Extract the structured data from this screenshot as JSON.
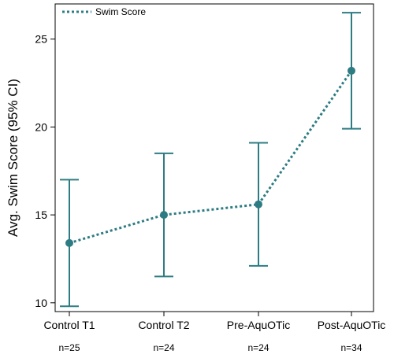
{
  "chart_data": {
    "type": "line",
    "ylabel": "Avg. Swim Score (95% CI)",
    "xlabel": "",
    "categories": [
      "Control T1",
      "Control T2",
      "Pre-AquOTic",
      "Post-AquOTic"
    ],
    "sample_sizes": [
      "n=25",
      "n=24",
      "n=24",
      "n=34"
    ],
    "ylim": [
      9.5,
      27
    ],
    "yticks": [
      10,
      15,
      20,
      25
    ],
    "series": [
      {
        "name": "Swim Score",
        "values": [
          13.4,
          15.0,
          15.6,
          23.2
        ],
        "ci_lower": [
          9.8,
          11.5,
          12.1,
          19.9
        ],
        "ci_upper": [
          17.0,
          18.5,
          19.1,
          26.5
        ],
        "color": "#2e7c83",
        "line_style": "dotted"
      }
    ],
    "legend": {
      "placement": "top-left"
    },
    "grid": false
  }
}
